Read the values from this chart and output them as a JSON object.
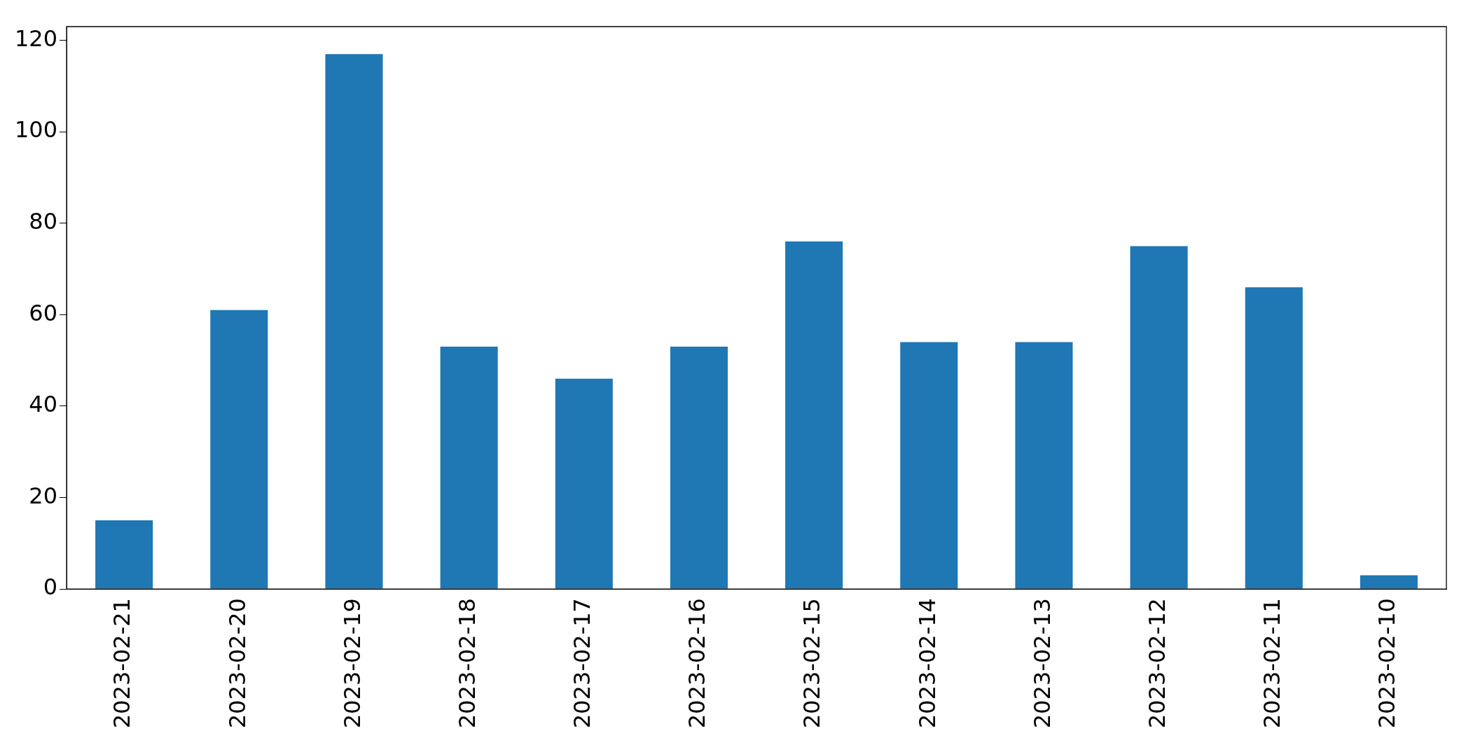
{
  "chart_data": {
    "type": "bar",
    "categories": [
      "2023-02-21",
      "2023-02-20",
      "2023-02-19",
      "2023-02-18",
      "2023-02-17",
      "2023-02-16",
      "2023-02-15",
      "2023-02-14",
      "2023-02-13",
      "2023-02-12",
      "2023-02-11",
      "2023-02-10"
    ],
    "values": [
      15,
      61,
      117,
      53,
      46,
      53,
      76,
      54,
      54,
      75,
      66,
      3
    ],
    "color": "#1f77b4",
    "ylim": [
      0,
      123
    ],
    "yticks": [
      0,
      20,
      40,
      60,
      80,
      100,
      120
    ],
    "grid": false,
    "legend": false
  }
}
